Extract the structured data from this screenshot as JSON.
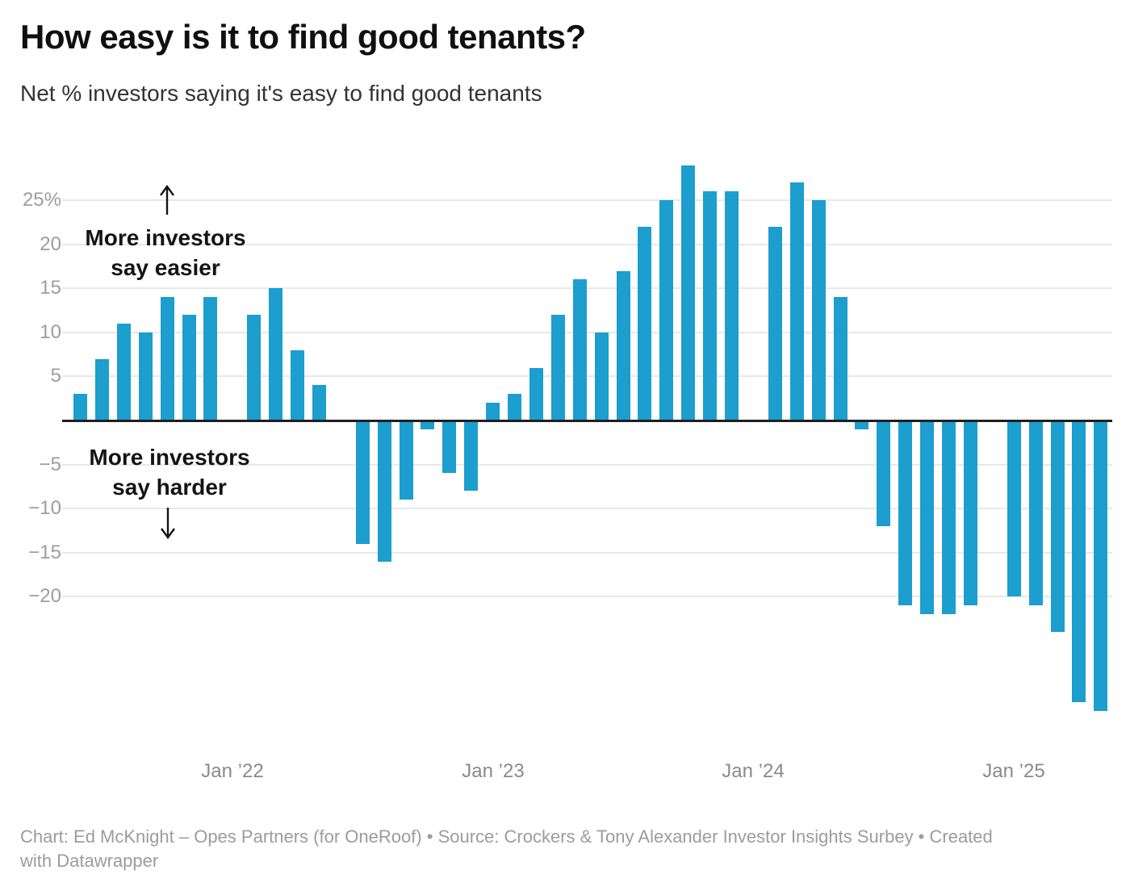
{
  "header": {
    "title": "How easy is it to find good tenants?",
    "subtitle": "Net % investors saying it's easy to find good tenants"
  },
  "chart_data": {
    "type": "bar",
    "title": "How easy is it to find good tenants?",
    "subtitle": "Net % investors saying it's easy to find good tenants",
    "unit": "%",
    "x_unit": "month_index (0 = first bar; Jan ’22 = 7, Jan ’23 = 19, Jan ’24 = 31, Jan ’25 = 43; missing indices are months with no bar)",
    "ylim": [
      -33,
      29
    ],
    "grid": "horizontal",
    "y_axis": {
      "ticks": [
        {
          "value": 25,
          "label": "25%"
        },
        {
          "value": 20,
          "label": "20"
        },
        {
          "value": 15,
          "label": "15"
        },
        {
          "value": 10,
          "label": "10"
        },
        {
          "value": 5,
          "label": "5"
        },
        {
          "value": -5,
          "label": "−5"
        },
        {
          "value": -10,
          "label": "−10"
        },
        {
          "value": -15,
          "label": "−15"
        },
        {
          "value": -20,
          "label": "−20"
        }
      ],
      "zero_line": true
    },
    "x_axis": {
      "ticks": [
        {
          "label": "Jan ’22",
          "month_index": 7
        },
        {
          "label": "Jan ’23",
          "month_index": 19
        },
        {
          "label": "Jan ’24",
          "month_index": 31
        },
        {
          "label": "Jan ’25",
          "month_index": 43
        }
      ]
    },
    "series": [
      {
        "name": "Net % investors saying it's easy to find good tenants",
        "points": [
          {
            "m": 0,
            "v": 3
          },
          {
            "m": 1,
            "v": 7
          },
          {
            "m": 2,
            "v": 11
          },
          {
            "m": 3,
            "v": 10
          },
          {
            "m": 4,
            "v": 14
          },
          {
            "m": 5,
            "v": 12
          },
          {
            "m": 6,
            "v": 14
          },
          {
            "m": 8,
            "v": 12
          },
          {
            "m": 9,
            "v": 15
          },
          {
            "m": 10,
            "v": 8
          },
          {
            "m": 11,
            "v": 4
          },
          {
            "m": 13,
            "v": -14
          },
          {
            "m": 14,
            "v": -16
          },
          {
            "m": 15,
            "v": -9
          },
          {
            "m": 16,
            "v": -1
          },
          {
            "m": 17,
            "v": -6
          },
          {
            "m": 18,
            "v": -8
          },
          {
            "m": 19,
            "v": 2
          },
          {
            "m": 20,
            "v": 3
          },
          {
            "m": 21,
            "v": 6
          },
          {
            "m": 22,
            "v": 12
          },
          {
            "m": 23,
            "v": 16
          },
          {
            "m": 24,
            "v": 10
          },
          {
            "m": 25,
            "v": 17
          },
          {
            "m": 26,
            "v": 22
          },
          {
            "m": 27,
            "v": 25
          },
          {
            "m": 28,
            "v": 29
          },
          {
            "m": 29,
            "v": 26
          },
          {
            "m": 30,
            "v": 26
          },
          {
            "m": 32,
            "v": 22
          },
          {
            "m": 33,
            "v": 27
          },
          {
            "m": 34,
            "v": 25
          },
          {
            "m": 35,
            "v": 14
          },
          {
            "m": 36,
            "v": -1
          },
          {
            "m": 37,
            "v": -12
          },
          {
            "m": 38,
            "v": -21
          },
          {
            "m": 39,
            "v": -22
          },
          {
            "m": 40,
            "v": -22
          },
          {
            "m": 41,
            "v": -21
          },
          {
            "m": 43,
            "v": -20
          },
          {
            "m": 44,
            "v": -21
          },
          {
            "m": 45,
            "v": -24
          },
          {
            "m": 46,
            "v": -32
          },
          {
            "m": 47,
            "v": -33
          }
        ]
      }
    ],
    "annotations": {
      "easier": {
        "line1": "More investors",
        "line2": "say easier",
        "arrow": "up"
      },
      "harder": {
        "line1": "More investors",
        "line2": "say harder",
        "arrow": "down"
      }
    },
    "colors": {
      "bar": "#1C9ECE",
      "gridline": "#e8e8e8",
      "zero_line": "#1f1f1f",
      "y_label": "#9d9d9d",
      "x_label": "#8a8a8a"
    },
    "legend": "none"
  },
  "footer": {
    "line1": "Chart: Ed McKnight – Opes Partners (for OneRoof) • Source: Crockers & Tony Alexander Investor Insights Surbey • Created",
    "line2": "with Datawrapper"
  }
}
